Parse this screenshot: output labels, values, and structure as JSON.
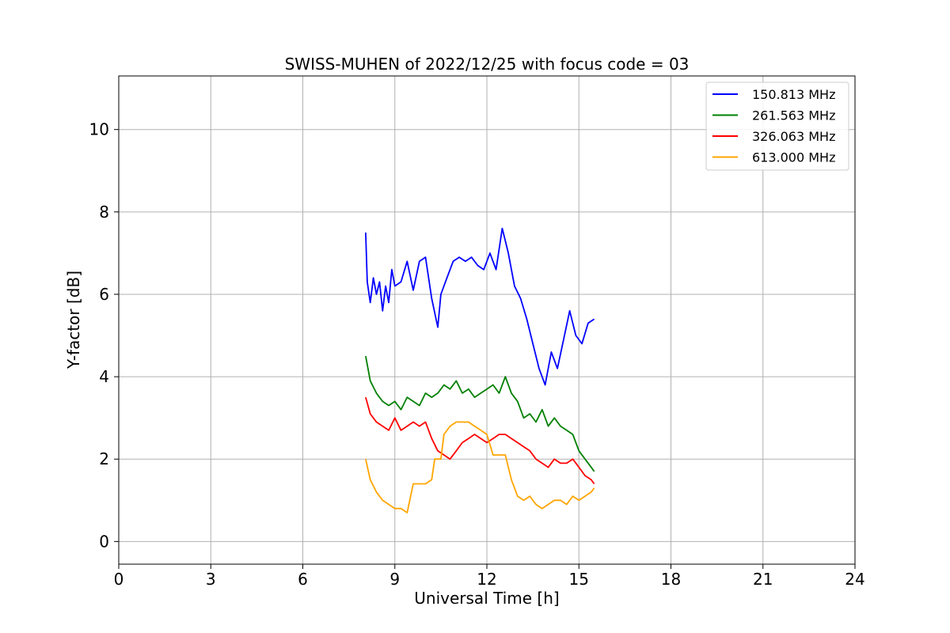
{
  "chart_data": {
    "type": "line",
    "title": "SWISS-MUHEN of 2022/12/25 with focus code = 03",
    "xlabel": "Universal Time [h]",
    "ylabel": "Y-factor [dB]",
    "xlim": [
      0,
      24
    ],
    "ylim": [
      -0.55,
      11.3
    ],
    "x_ticks": [
      0,
      3,
      6,
      9,
      12,
      15,
      18,
      21,
      24
    ],
    "y_ticks": [
      0,
      2,
      4,
      6,
      8,
      10
    ],
    "grid": true,
    "legend_position": "top-right",
    "series": [
      {
        "name": "150.813 MHz",
        "color": "#0000ff",
        "x": [
          8.05,
          8.1,
          8.2,
          8.3,
          8.4,
          8.5,
          8.6,
          8.7,
          8.8,
          8.9,
          9.0,
          9.2,
          9.4,
          9.6,
          9.8,
          10.0,
          10.2,
          10.4,
          10.5,
          10.7,
          10.9,
          11.1,
          11.3,
          11.5,
          11.7,
          11.9,
          12.1,
          12.3,
          12.5,
          12.7,
          12.9,
          13.1,
          13.3,
          13.5,
          13.7,
          13.9,
          14.1,
          14.3,
          14.5,
          14.7,
          14.9,
          15.1,
          15.3,
          15.5
        ],
        "y": [
          7.5,
          6.3,
          5.8,
          6.4,
          6.0,
          6.3,
          5.6,
          6.2,
          5.8,
          6.6,
          6.2,
          6.3,
          6.8,
          6.1,
          6.8,
          6.9,
          5.9,
          5.2,
          6.0,
          6.4,
          6.8,
          6.9,
          6.8,
          6.9,
          6.7,
          6.6,
          7.0,
          6.6,
          7.6,
          7.0,
          6.2,
          5.9,
          5.4,
          4.8,
          4.2,
          3.8,
          4.6,
          4.2,
          4.9,
          5.6,
          5.0,
          4.8,
          5.3,
          5.4
        ]
      },
      {
        "name": "261.563 MHz",
        "color": "#008000",
        "x": [
          8.05,
          8.2,
          8.4,
          8.6,
          8.8,
          9.0,
          9.2,
          9.4,
          9.6,
          9.8,
          10.0,
          10.2,
          10.4,
          10.6,
          10.8,
          11.0,
          11.2,
          11.4,
          11.6,
          11.8,
          12.0,
          12.2,
          12.4,
          12.6,
          12.8,
          13.0,
          13.2,
          13.4,
          13.6,
          13.8,
          14.0,
          14.2,
          14.4,
          14.6,
          14.8,
          15.0,
          15.2,
          15.4,
          15.5
        ],
        "y": [
          4.5,
          3.9,
          3.6,
          3.4,
          3.3,
          3.4,
          3.2,
          3.5,
          3.4,
          3.3,
          3.6,
          3.5,
          3.6,
          3.8,
          3.7,
          3.9,
          3.6,
          3.7,
          3.5,
          3.6,
          3.7,
          3.8,
          3.6,
          4.0,
          3.6,
          3.4,
          3.0,
          3.1,
          2.9,
          3.2,
          2.8,
          3.0,
          2.8,
          2.7,
          2.6,
          2.2,
          2.0,
          1.8,
          1.7
        ]
      },
      {
        "name": "326.063 MHz",
        "color": "#ff0000",
        "x": [
          8.05,
          8.2,
          8.4,
          8.6,
          8.8,
          9.0,
          9.2,
          9.4,
          9.6,
          9.8,
          10.0,
          10.2,
          10.4,
          10.6,
          10.8,
          11.0,
          11.2,
          11.4,
          11.6,
          11.8,
          12.0,
          12.2,
          12.4,
          12.6,
          12.8,
          13.0,
          13.2,
          13.4,
          13.6,
          13.8,
          14.0,
          14.2,
          14.4,
          14.6,
          14.8,
          15.0,
          15.2,
          15.4,
          15.5
        ],
        "y": [
          3.5,
          3.1,
          2.9,
          2.8,
          2.7,
          3.0,
          2.7,
          2.8,
          2.9,
          2.8,
          2.9,
          2.5,
          2.2,
          2.1,
          2.0,
          2.2,
          2.4,
          2.5,
          2.6,
          2.5,
          2.4,
          2.5,
          2.6,
          2.6,
          2.5,
          2.4,
          2.3,
          2.2,
          2.0,
          1.9,
          1.8,
          2.0,
          1.9,
          1.9,
          2.0,
          1.8,
          1.6,
          1.5,
          1.4
        ]
      },
      {
        "name": "613.000 MHz",
        "color": "#ffa500",
        "x": [
          8.05,
          8.2,
          8.4,
          8.6,
          8.8,
          9.0,
          9.2,
          9.4,
          9.6,
          9.8,
          10.0,
          10.2,
          10.3,
          10.5,
          10.6,
          10.8,
          11.0,
          11.2,
          11.4,
          11.6,
          11.8,
          12.0,
          12.2,
          12.4,
          12.6,
          12.8,
          13.0,
          13.2,
          13.4,
          13.6,
          13.8,
          14.0,
          14.2,
          14.4,
          14.6,
          14.8,
          15.0,
          15.2,
          15.4,
          15.5
        ],
        "y": [
          2.0,
          1.5,
          1.2,
          1.0,
          0.9,
          0.8,
          0.8,
          0.7,
          1.4,
          1.4,
          1.4,
          1.5,
          2.0,
          2.0,
          2.6,
          2.8,
          2.9,
          2.9,
          2.9,
          2.8,
          2.7,
          2.6,
          2.1,
          2.1,
          2.1,
          1.5,
          1.1,
          1.0,
          1.1,
          0.9,
          0.8,
          0.9,
          1.0,
          1.0,
          0.9,
          1.1,
          1.0,
          1.1,
          1.2,
          1.3
        ]
      }
    ]
  }
}
